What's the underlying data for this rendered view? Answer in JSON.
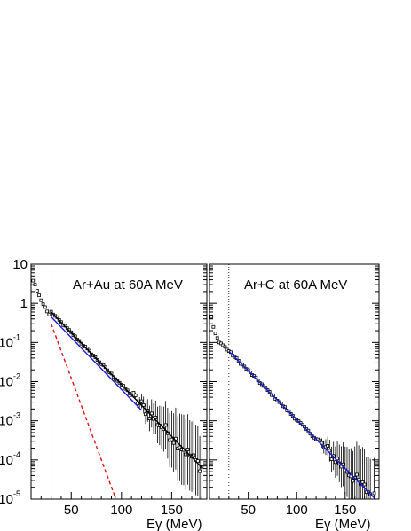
{
  "chart_data": [
    {
      "type": "scatter",
      "title": "Ar+Au at 60A MeV",
      "xlabel": "Eγ (MeV)",
      "ylabel": "",
      "xlim": [
        10,
        185
      ],
      "ylim": [
        1e-05,
        10
      ],
      "yscale": "log",
      "xticks": [
        50,
        100,
        150
      ],
      "yticks": [
        {
          "value": 1e-05,
          "base": "10",
          "exp": "-5"
        },
        {
          "value": 0.0001,
          "base": "10",
          "exp": "-4"
        },
        {
          "value": 0.001,
          "base": "10",
          "exp": "-3"
        },
        {
          "value": 0.01,
          "base": "10",
          "exp": "-2"
        },
        {
          "value": 0.1,
          "base": "10",
          "exp": "-1"
        },
        {
          "value": 1,
          "base": "1",
          "exp": ""
        },
        {
          "value": 10,
          "base": "10",
          "exp": ""
        }
      ],
      "threshold_x": 30,
      "legend": "none",
      "grid": false,
      "series": [
        {
          "kind": "points",
          "color": "#000000",
          "x0": 10,
          "dx": 2,
          "a": 0.6,
          "b": 0.061,
          "ymax": 180,
          "errstart": 110,
          "errgrow": 0.018,
          "low": [
            {
              "x": 12,
              "y": 3.8
            },
            {
              "x": 14,
              "y": 3.0
            },
            {
              "x": 16,
              "y": 2.1
            },
            {
              "x": 18,
              "y": 1.6
            },
            {
              "x": 20,
              "y": 1.2
            },
            {
              "x": 22,
              "y": 0.95
            },
            {
              "x": 24,
              "y": 0.8
            },
            {
              "x": 26,
              "y": 0.62
            },
            {
              "x": 28,
              "y": 0.52
            }
          ]
        },
        {
          "kind": "fit",
          "color": "#000000",
          "dash": "",
          "x": [
            30,
            180
          ],
          "a": 0.6,
          "b": 0.061
        },
        {
          "kind": "fit",
          "color": "#1a1adc",
          "dash": "",
          "x": [
            30,
            120
          ],
          "a": 0.45,
          "b": 0.061
        },
        {
          "kind": "fit",
          "color": "#e01010",
          "dash": "4,3",
          "x": [
            30,
            92
          ],
          "a": 0.3,
          "b": 0.16
        },
        {
          "kind": "fit",
          "color": "#e01010",
          "dash": "",
          "x": [
            92,
            110
          ],
          "a": 0.3,
          "b": 0.16
        }
      ]
    },
    {
      "type": "scatter",
      "title": "Ar+C at 60A MeV",
      "xlabel": "Eγ (MeV)",
      "ylabel": "",
      "xlim": [
        10,
        185
      ],
      "ylim": [
        1e-05,
        10
      ],
      "yscale": "log",
      "xticks": [
        50,
        100,
        150
      ],
      "yticks": [],
      "threshold_x": 30,
      "legend": "none",
      "grid": false,
      "series": [
        {
          "kind": "points",
          "color": "#000000",
          "x0": 12,
          "dx": 2,
          "a": 0.06,
          "b": 0.0575,
          "ymax": 185,
          "errstart": 120,
          "errgrow": 0.02,
          "low": [
            {
              "x": 12,
              "y": 0.45
            },
            {
              "x": 14,
              "y": 0.25
            },
            {
              "x": 16,
              "y": 0.17
            },
            {
              "x": 18,
              "y": 0.13
            },
            {
              "x": 20,
              "y": 0.1
            }
          ]
        },
        {
          "kind": "fit",
          "color": "#1a1adc",
          "dash": "",
          "x": [
            30,
            180
          ],
          "a": 0.06,
          "b": 0.0575
        }
      ]
    }
  ]
}
